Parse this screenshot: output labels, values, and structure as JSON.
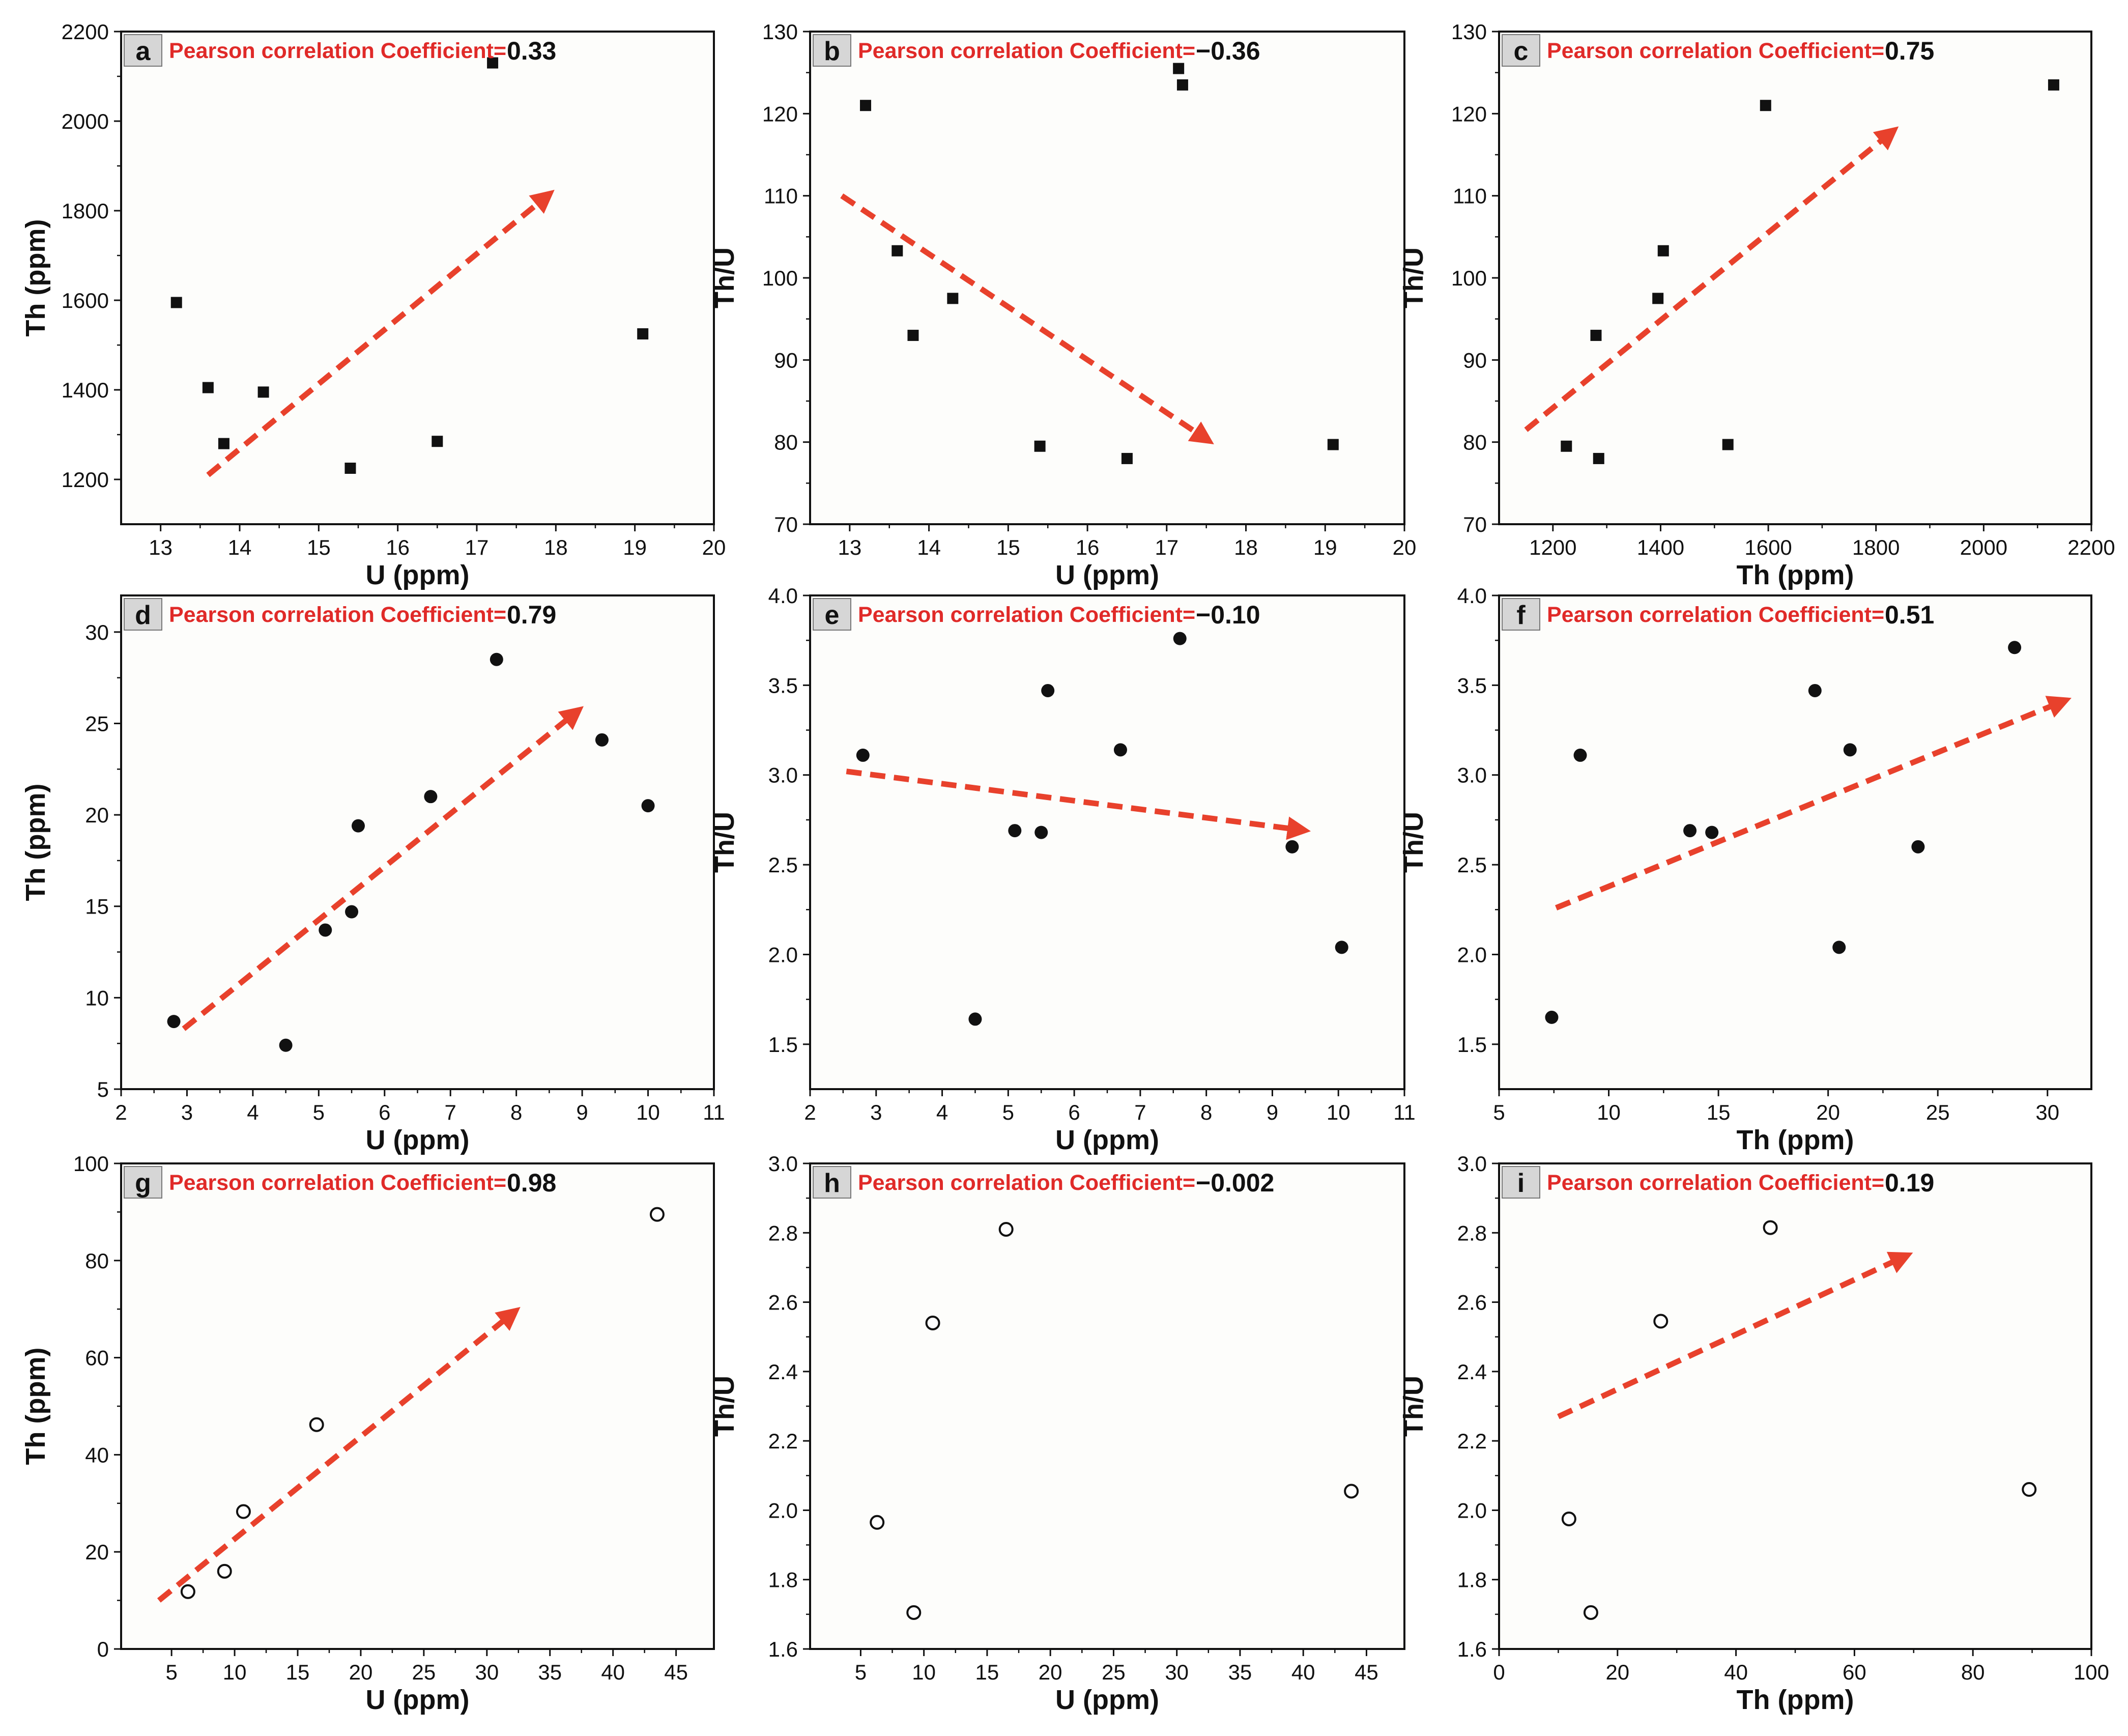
{
  "figure": {
    "annotation_prefix": "Pearson correlation Coefficient=",
    "colors": {
      "plot_bg": "#fdfdfb",
      "axis": "#111111",
      "marker": "#111111",
      "trend_arrow": "#e8412c",
      "annotation_text": "#e02a28",
      "panel_label_bg": "#d6d6d6"
    }
  },
  "chart_data": [
    {
      "panel": "a",
      "type": "scatter",
      "marker": "square",
      "xlabel": "U (ppm)",
      "ylabel": "Th (ppm)",
      "xlim": [
        12.5,
        20
      ],
      "ylim": [
        1100,
        2200
      ],
      "xticks": [
        13,
        14,
        15,
        16,
        17,
        18,
        19,
        20
      ],
      "yticks": [
        1200,
        1400,
        1600,
        1800,
        2000,
        2200
      ],
      "points": [
        [
          13.2,
          1595
        ],
        [
          13.6,
          1405
        ],
        [
          13.8,
          1280
        ],
        [
          14.3,
          1395
        ],
        [
          15.4,
          1225
        ],
        [
          16.5,
          1285
        ],
        [
          17.2,
          2130
        ],
        [
          19.1,
          1525
        ]
      ],
      "pearson": "0.33",
      "trend": {
        "from": [
          13.6,
          1210
        ],
        "to": [
          17.8,
          1820
        ]
      }
    },
    {
      "panel": "b",
      "type": "scatter",
      "marker": "square",
      "xlabel": "U (ppm)",
      "ylabel": "Th/U",
      "xlim": [
        12.5,
        20
      ],
      "ylim": [
        70,
        130
      ],
      "xticks": [
        13,
        14,
        15,
        16,
        17,
        18,
        19,
        20
      ],
      "yticks": [
        70,
        80,
        90,
        100,
        110,
        120,
        130
      ],
      "points": [
        [
          13.2,
          121
        ],
        [
          13.6,
          103.3
        ],
        [
          13.8,
          93
        ],
        [
          14.3,
          97.5
        ],
        [
          15.4,
          79.5
        ],
        [
          16.5,
          78
        ],
        [
          17.15,
          125.5
        ],
        [
          17.2,
          123.5
        ],
        [
          19.1,
          79.7
        ]
      ],
      "pearson": "−0.36",
      "trend": {
        "from": [
          12.9,
          110
        ],
        "to": [
          17.4,
          81
        ]
      }
    },
    {
      "panel": "c",
      "type": "scatter",
      "marker": "square",
      "xlabel": "Th (ppm)",
      "ylabel": "Th/U",
      "xlim": [
        1100,
        2200
      ],
      "ylim": [
        70,
        130
      ],
      "xticks": [
        1200,
        1400,
        1600,
        1800,
        2000,
        2200
      ],
      "yticks": [
        70,
        80,
        90,
        100,
        110,
        120,
        130
      ],
      "points": [
        [
          1225,
          79.5
        ],
        [
          1280,
          93
        ],
        [
          1285,
          78
        ],
        [
          1395,
          97.5
        ],
        [
          1405,
          103.3
        ],
        [
          1525,
          79.7
        ],
        [
          1595,
          121
        ],
        [
          2130,
          123.5
        ]
      ],
      "pearson": "0.75",
      "trend": {
        "from": [
          1150,
          81.5
        ],
        "to": [
          1815,
          117
        ]
      }
    },
    {
      "panel": "d",
      "type": "scatter",
      "marker": "filled-circle",
      "xlabel": "U (ppm)",
      "ylabel": "Th (ppm)",
      "xlim": [
        2,
        11
      ],
      "ylim": [
        5,
        32
      ],
      "xticks": [
        2,
        3,
        4,
        5,
        6,
        7,
        8,
        9,
        10,
        11
      ],
      "yticks": [
        5,
        10,
        15,
        20,
        25,
        30
      ],
      "points": [
        [
          2.8,
          8.7
        ],
        [
          4.5,
          7.4
        ],
        [
          5.1,
          13.7
        ],
        [
          5.5,
          14.7
        ],
        [
          5.6,
          19.4
        ],
        [
          6.7,
          21
        ],
        [
          7.7,
          28.5
        ],
        [
          9.3,
          24.1
        ],
        [
          10,
          20.5
        ]
      ],
      "pearson": "0.79",
      "trend": {
        "from": [
          2.95,
          8.3
        ],
        "to": [
          8.8,
          25.3
        ]
      }
    },
    {
      "panel": "e",
      "type": "scatter",
      "marker": "filled-circle",
      "xlabel": "U (ppm)",
      "ylabel": "Th/U",
      "xlim": [
        2,
        11
      ],
      "ylim": [
        1.25,
        4.0
      ],
      "xticks": [
        2,
        3,
        4,
        5,
        6,
        7,
        8,
        9,
        10,
        11
      ],
      "yticks": [
        1.5,
        2.0,
        2.5,
        3.0,
        3.5,
        4.0
      ],
      "points": [
        [
          2.8,
          3.11
        ],
        [
          4.5,
          1.64
        ],
        [
          5.1,
          2.69
        ],
        [
          5.5,
          2.68
        ],
        [
          5.6,
          3.47
        ],
        [
          6.7,
          3.14
        ],
        [
          7.6,
          3.76
        ],
        [
          9.3,
          2.6
        ],
        [
          10.05,
          2.04
        ]
      ],
      "pearson": "−0.10",
      "trend": {
        "from": [
          2.55,
          3.02
        ],
        "to": [
          9.3,
          2.7
        ]
      }
    },
    {
      "panel": "f",
      "type": "scatter",
      "marker": "filled-circle",
      "xlabel": "Th (ppm)",
      "ylabel": "Th/U",
      "xlim": [
        5,
        32
      ],
      "ylim": [
        1.25,
        4.0
      ],
      "xticks": [
        5,
        10,
        15,
        20,
        25,
        30
      ],
      "yticks": [
        1.5,
        2.0,
        2.5,
        3.0,
        3.5,
        4.0
      ],
      "points": [
        [
          7.4,
          1.65
        ],
        [
          8.7,
          3.11
        ],
        [
          13.7,
          2.69
        ],
        [
          14.7,
          2.68
        ],
        [
          19.4,
          3.47
        ],
        [
          20.5,
          2.04
        ],
        [
          21,
          3.14
        ],
        [
          24.1,
          2.6
        ],
        [
          28.5,
          3.71
        ]
      ],
      "pearson": "0.51",
      "trend": {
        "from": [
          7.6,
          2.26
        ],
        "to": [
          30.3,
          3.39
        ]
      }
    },
    {
      "panel": "g",
      "type": "scatter",
      "marker": "open-circle",
      "xlabel": "U (ppm)",
      "ylabel": "Th (ppm)",
      "xlim": [
        1,
        48
      ],
      "ylim": [
        0,
        100
      ],
      "xticks": [
        5,
        10,
        15,
        20,
        25,
        30,
        35,
        40,
        45
      ],
      "yticks": [
        0,
        20,
        40,
        60,
        80,
        100
      ],
      "points": [
        [
          6.3,
          11.8
        ],
        [
          9.2,
          16
        ],
        [
          10.7,
          28.3
        ],
        [
          16.5,
          46.2
        ],
        [
          43.5,
          89.5
        ]
      ],
      "pearson": "0.98",
      "trend": {
        "from": [
          4,
          10
        ],
        "to": [
          31.5,
          68
        ]
      }
    },
    {
      "panel": "h",
      "type": "scatter",
      "marker": "open-circle",
      "xlabel": "U (ppm)",
      "ylabel": "Th/U",
      "xlim": [
        1,
        48
      ],
      "ylim": [
        1.6,
        3.0
      ],
      "xticks": [
        5,
        10,
        15,
        20,
        25,
        30,
        35,
        40,
        45
      ],
      "yticks": [
        1.6,
        1.8,
        2.0,
        2.2,
        2.4,
        2.6,
        2.8,
        3.0
      ],
      "points": [
        [
          6.3,
          1.965
        ],
        [
          9.2,
          1.705
        ],
        [
          10.7,
          2.54
        ],
        [
          16.5,
          2.81
        ],
        [
          43.8,
          2.055
        ]
      ],
      "pearson": "−0.002",
      "trend": null
    },
    {
      "panel": "i",
      "type": "scatter",
      "marker": "open-circle",
      "xlabel": "Th (ppm)",
      "ylabel": "Th/U",
      "xlim": [
        0,
        100
      ],
      "ylim": [
        1.6,
        3.0
      ],
      "xticks": [
        0,
        20,
        40,
        60,
        80,
        100
      ],
      "yticks": [
        1.6,
        1.8,
        2.0,
        2.2,
        2.4,
        2.6,
        2.8,
        3.0
      ],
      "points": [
        [
          11.8,
          1.975
        ],
        [
          15.5,
          1.705
        ],
        [
          27.3,
          2.545
        ],
        [
          45.8,
          2.815
        ],
        [
          89.5,
          2.06
        ]
      ],
      "pearson": "0.19",
      "trend": {
        "from": [
          10,
          2.27
        ],
        "to": [
          67,
          2.72
        ]
      }
    }
  ]
}
